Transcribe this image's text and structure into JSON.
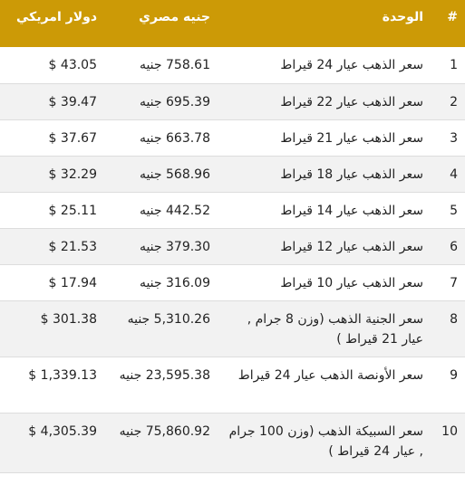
{
  "table": {
    "headers": {
      "index": "#",
      "unit": "الوحدة",
      "egp": "جنيه مصري",
      "usd": "دولار امريكي"
    },
    "rows": [
      {
        "index": "1",
        "unit": "سعر الذهب عيار 24 قيراط",
        "egp": "758.61 جنيه",
        "usd": "43.05 $"
      },
      {
        "index": "2",
        "unit": "سعر الذهب عيار 22 قيراط",
        "egp": "695.39 جنيه",
        "usd": "39.47 $"
      },
      {
        "index": "3",
        "unit": "سعر الذهب عيار 21 قيراط",
        "egp": "663.78 جنيه",
        "usd": "37.67 $"
      },
      {
        "index": "4",
        "unit": "سعر الذهب عيار 18 قيراط",
        "egp": "568.96 جنيه",
        "usd": "32.29 $"
      },
      {
        "index": "5",
        "unit": "سعر الذهب عيار 14 قيراط",
        "egp": "442.52 جنيه",
        "usd": "25.11 $"
      },
      {
        "index": "6",
        "unit": "سعر الذهب عيار 12 قيراط",
        "egp": "379.30 جنيه",
        "usd": "21.53 $"
      },
      {
        "index": "7",
        "unit": "سعر الذهب عيار 10 قيراط",
        "egp": "316.09 جنيه",
        "usd": "17.94 $"
      },
      {
        "index": "8",
        "unit": "سعر الجنية الذهب (وزن 8 جرام , عيار 21 قيراط )",
        "egp": "5,310.26 جنيه",
        "usd": "301.38 $"
      },
      {
        "index": "9",
        "unit": "سعر الأونصة الذهب عيار 24 قيراط",
        "egp": "23,595.38 جنيه",
        "usd": "1,339.13 $"
      },
      {
        "index": "10",
        "unit": "سعر السبيكة الذهب (وزن 100 جرام , عيار 24 قيراط )",
        "egp": "75,860.92 جنيه",
        "usd": "4,305.39 $"
      }
    ]
  }
}
